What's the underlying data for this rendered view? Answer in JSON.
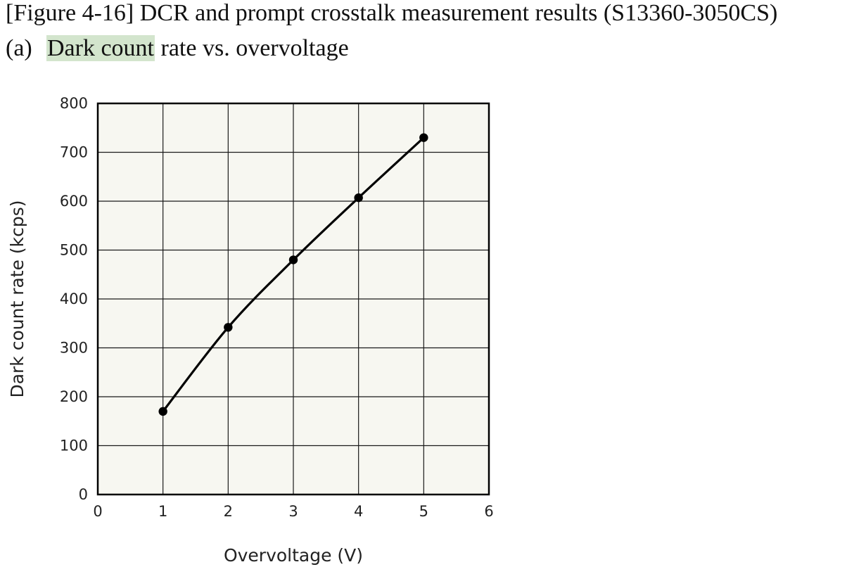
{
  "figure": {
    "caption": "[Figure 4-16] DCR and prompt crosstalk measurement results (S13360-3050CS)",
    "subfigure_label": "(a)",
    "subfigure_title_highlighted": "Dark count",
    "subfigure_title_rest": " rate vs. overvoltage",
    "highlight_color": "#d3e5cd"
  },
  "chart_data": {
    "type": "line",
    "title": "",
    "xlabel": "Overvoltage (V)",
    "ylabel": "Dark count rate (kcps)",
    "xlim": [
      0,
      6
    ],
    "ylim": [
      0,
      800
    ],
    "xticks": [
      0,
      1,
      2,
      3,
      4,
      5,
      6
    ],
    "yticks": [
      0,
      100,
      200,
      300,
      400,
      500,
      600,
      700,
      800
    ],
    "grid": true,
    "legend": "none",
    "plot_background": "#f7f7f1",
    "line_color": "#000000",
    "series": [
      {
        "x": [
          1,
          2,
          3,
          4,
          5
        ],
        "values": [
          170,
          342,
          480,
          607,
          730
        ]
      }
    ]
  }
}
